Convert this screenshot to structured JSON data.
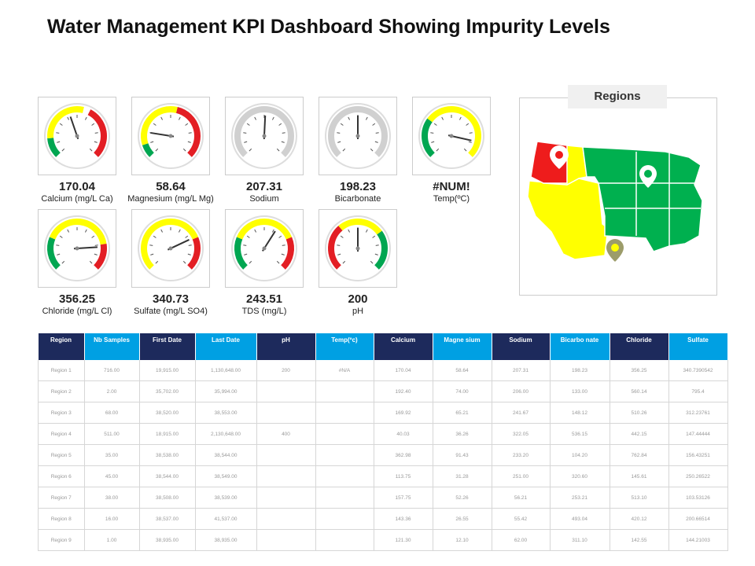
{
  "header": {
    "title": "Water Management KPI Dashboard Showing Impurity Levels"
  },
  "gauges": [
    {
      "value": "170.04",
      "label": "Calcium (mg/L Ca)"
    },
    {
      "value": "58.64",
      "label": "Magnesium (mg/L Mg)"
    },
    {
      "value": "207.31",
      "label": "Sodium"
    },
    {
      "value": "198.23",
      "label": "Bicarbonate"
    },
    {
      "value": "#NUM!",
      "label": "Temp(ºC)"
    },
    {
      "value": "356.25",
      "label": "Chloride (mg/L Cl)"
    },
    {
      "value": "340.73",
      "label": "Sulfate (mg/L SO4)"
    },
    {
      "value": "243.51",
      "label": "TDS (mg/L)"
    },
    {
      "value": "200",
      "label": "pH"
    }
  ],
  "map": {
    "title": "Regions"
  },
  "table": {
    "columns": [
      "Region",
      "Nb Samples",
      "First Date",
      "Last Date",
      "pH",
      "Temp(ºc)",
      "Calcium",
      "Magne sium",
      "Sodium",
      "Bicarbo nate",
      "Chloride",
      "Sulfate"
    ],
    "rows": [
      [
        "Region 1",
        "716.00",
        "19,915.00",
        "1,130,648.00",
        "200",
        "#N/A",
        "170.04",
        "58.64",
        "207.31",
        "198.23",
        "356.25",
        "340.7390542"
      ],
      [
        "Region 2",
        "2.00",
        "35,702.00",
        "35,994.00",
        null,
        null,
        "192.40",
        "74.00",
        "206.00",
        "133.00",
        "560.14",
        "795.4"
      ],
      [
        "Region 3",
        "68.00",
        "38,520.00",
        "38,553.00",
        null,
        null,
        "169.92",
        "65.21",
        "241.67",
        "148.12",
        "510.26",
        "312.23761"
      ],
      [
        "Region 4",
        "511.00",
        "18,915.00",
        "2,130,648.00",
        "400",
        null,
        "40.03",
        "36.26",
        "322.05",
        "536.15",
        "442.15",
        "147.44444"
      ],
      [
        "Region 5",
        "35.00",
        "38,538.00",
        "38,544.00",
        null,
        null,
        "362.98",
        "91.43",
        "233.20",
        "104.20",
        "762.84",
        "156.43251"
      ],
      [
        "Region 6",
        "45.00",
        "38,544.00",
        "38,549.00",
        null,
        null,
        "113.75",
        "31.28",
        "251.00",
        "320.60",
        "145.61",
        "250.26522"
      ],
      [
        "Region 7",
        "38.00",
        "38,508.00",
        "38,539.00",
        null,
        null,
        "157.75",
        "52.26",
        "56.21",
        "253.21",
        "513.10",
        "103.53126"
      ],
      [
        "Region 8",
        "16.00",
        "38,537.00",
        "41,537.00",
        null,
        null,
        "143.36",
        "26.55",
        "55.42",
        "493.04",
        "420.12",
        "200.66514"
      ],
      [
        "Region 9",
        "1.00",
        "38,935.00",
        "38,935.00",
        null,
        null,
        "121.30",
        "12.10",
        "62.00",
        "311.10",
        "142.55",
        "144.21003"
      ]
    ]
  }
}
